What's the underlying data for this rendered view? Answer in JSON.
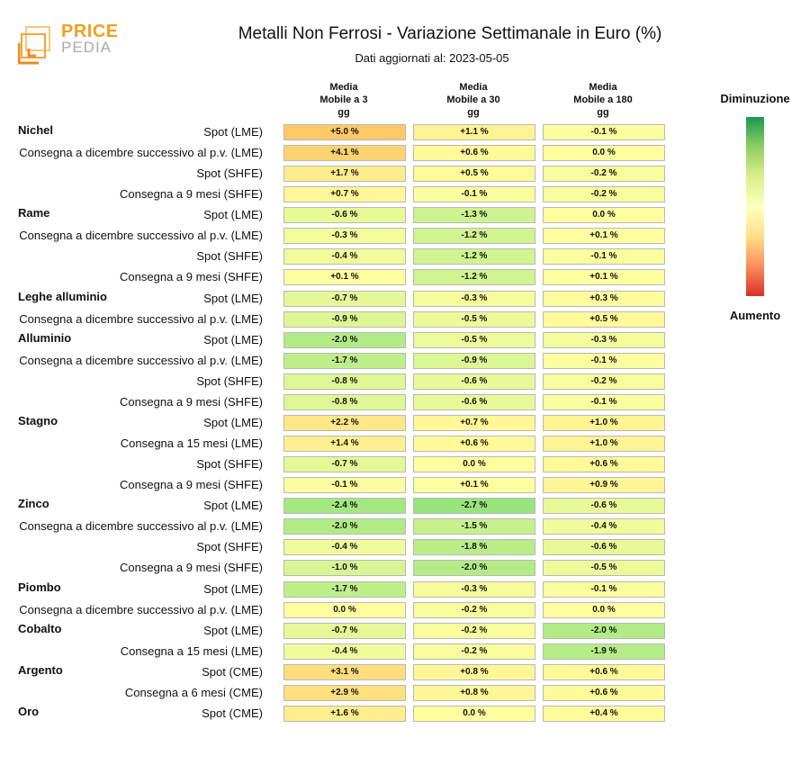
{
  "logo": {
    "text_top": "PRICE",
    "text_bottom": "PEDIA"
  },
  "chart_data": {
    "type": "heatmap",
    "title": "Metalli Non Ferrosi - Variazione Settimanale in Euro (%)",
    "subtitle": "Dati aggiornati al: 2023-05-05",
    "columns": [
      "Media\nMobile a 3\ngg",
      "Media\nMobile a 30\ngg",
      "Media\nMobile a 180\ngg"
    ],
    "legend": {
      "top": "Diminuzione",
      "bottom": "Aumento",
      "colors": [
        "#1a9850",
        "#91cf60",
        "#d9ef8b",
        "#ffffbf",
        "#fee08b",
        "#fc8d59",
        "#d73027"
      ]
    },
    "rows": [
      {
        "metal": "Nichel",
        "label": "Spot (LME)",
        "values": [
          "+5.0 %",
          "+1.1 %",
          "-0.1 %"
        ]
      },
      {
        "metal": "",
        "label": "Consegna a dicembre successivo al p.v. (LME)",
        "values": [
          "+4.1 %",
          "+0.6 %",
          "0.0 %"
        ]
      },
      {
        "metal": "",
        "label": "Spot (SHFE)",
        "values": [
          "+1.7 %",
          "+0.5 %",
          "-0.2 %"
        ]
      },
      {
        "metal": "",
        "label": "Consegna a 9 mesi (SHFE)",
        "values": [
          "+0.7 %",
          "-0.1 %",
          "-0.2 %"
        ]
      },
      {
        "metal": "Rame",
        "label": "Spot (LME)",
        "values": [
          "-0.6 %",
          "-1.3 %",
          "0.0 %"
        ]
      },
      {
        "metal": "",
        "label": "Consegna a dicembre successivo al p.v. (LME)",
        "values": [
          "-0.3 %",
          "-1.2 %",
          "+0.1 %"
        ]
      },
      {
        "metal": "",
        "label": "Spot (SHFE)",
        "values": [
          "-0.4 %",
          "-1.2 %",
          "-0.1 %"
        ]
      },
      {
        "metal": "",
        "label": "Consegna a 9 mesi (SHFE)",
        "values": [
          "+0.1 %",
          "-1.2 %",
          "+0.1 %"
        ]
      },
      {
        "metal": "Leghe alluminio",
        "label": "Spot (LME)",
        "values": [
          "-0.7 %",
          "-0.3 %",
          "+0.3 %"
        ]
      },
      {
        "metal": "",
        "label": "Consegna a dicembre successivo al p.v. (LME)",
        "values": [
          "-0.9 %",
          "-0.5 %",
          "+0.5 %"
        ]
      },
      {
        "metal": "Alluminio",
        "label": "Spot (LME)",
        "values": [
          "-2.0 %",
          "-0.5 %",
          "-0.3 %"
        ]
      },
      {
        "metal": "",
        "label": "Consegna a dicembre successivo al p.v. (LME)",
        "values": [
          "-1.7 %",
          "-0.9 %",
          "-0.1 %"
        ]
      },
      {
        "metal": "",
        "label": "Spot (SHFE)",
        "values": [
          "-0.8 %",
          "-0.6 %",
          "-0.2 %"
        ]
      },
      {
        "metal": "",
        "label": "Consegna a 9 mesi (SHFE)",
        "values": [
          "-0.8 %",
          "-0.6 %",
          "-0.1 %"
        ]
      },
      {
        "metal": "Stagno",
        "label": "Spot (LME)",
        "values": [
          "+2.2 %",
          "+0.7 %",
          "+1.0 %"
        ]
      },
      {
        "metal": "",
        "label": "Consegna a 15 mesi (LME)",
        "values": [
          "+1.4 %",
          "+0.6 %",
          "+1.0 %"
        ]
      },
      {
        "metal": "",
        "label": "Spot (SHFE)",
        "values": [
          "-0.7 %",
          "0.0 %",
          "+0.6 %"
        ]
      },
      {
        "metal": "",
        "label": "Consegna a 9 mesi (SHFE)",
        "values": [
          "-0.1 %",
          "+0.1 %",
          "+0.9 %"
        ]
      },
      {
        "metal": "Zinco",
        "label": "Spot (LME)",
        "values": [
          "-2.4 %",
          "-2.7 %",
          "-0.6 %"
        ]
      },
      {
        "metal": "",
        "label": "Consegna a dicembre successivo al p.v. (LME)",
        "values": [
          "-2.0 %",
          "-1.5 %",
          "-0.4 %"
        ]
      },
      {
        "metal": "",
        "label": "Spot (SHFE)",
        "values": [
          "-0.4 %",
          "-1.8 %",
          "-0.6 %"
        ]
      },
      {
        "metal": "",
        "label": "Consegna a 9 mesi (SHFE)",
        "values": [
          "-1.0 %",
          "-2.0 %",
          "-0.5 %"
        ]
      },
      {
        "metal": "Piombo",
        "label": "Spot (LME)",
        "values": [
          "-1.7 %",
          "-0.3 %",
          "-0.1 %"
        ]
      },
      {
        "metal": "",
        "label": "Consegna a dicembre successivo al p.v. (LME)",
        "values": [
          "0.0 %",
          "-0.2 %",
          "0.0 %"
        ]
      },
      {
        "metal": "Cobalto",
        "label": "Spot (LME)",
        "values": [
          "-0.7 %",
          "-0.2 %",
          "-2.0 %"
        ]
      },
      {
        "metal": "",
        "label": "Consegna a 15 mesi (LME)",
        "values": [
          "-0.4 %",
          "-0.2 %",
          "-1.9 %"
        ]
      },
      {
        "metal": "Argento",
        "label": "Spot (CME)",
        "values": [
          "+3.1 %",
          "+0.8 %",
          "+0.6 %"
        ]
      },
      {
        "metal": "",
        "label": "Consegna a 6 mesi (CME)",
        "values": [
          "+2.9 %",
          "+0.8 %",
          "+0.6 %"
        ]
      },
      {
        "metal": "Oro",
        "label": "Spot (CME)",
        "values": [
          "+1.6 %",
          "0.0 %",
          "+0.4 %"
        ]
      }
    ]
  }
}
